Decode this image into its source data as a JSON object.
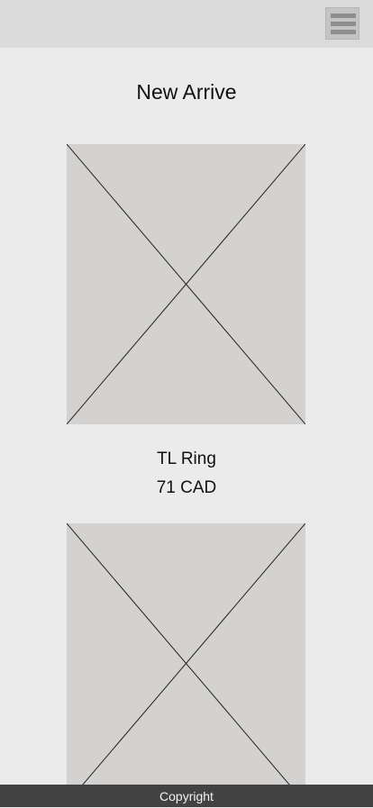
{
  "header": {
    "menu_icon": "hamburger-menu-icon"
  },
  "page": {
    "title": "New Arrive"
  },
  "products": [
    {
      "name": "TL Ring",
      "price": "71 CAD",
      "image": "image-placeholder"
    },
    {
      "image": "image-placeholder"
    }
  ],
  "footer": {
    "text": "Copyright"
  }
}
